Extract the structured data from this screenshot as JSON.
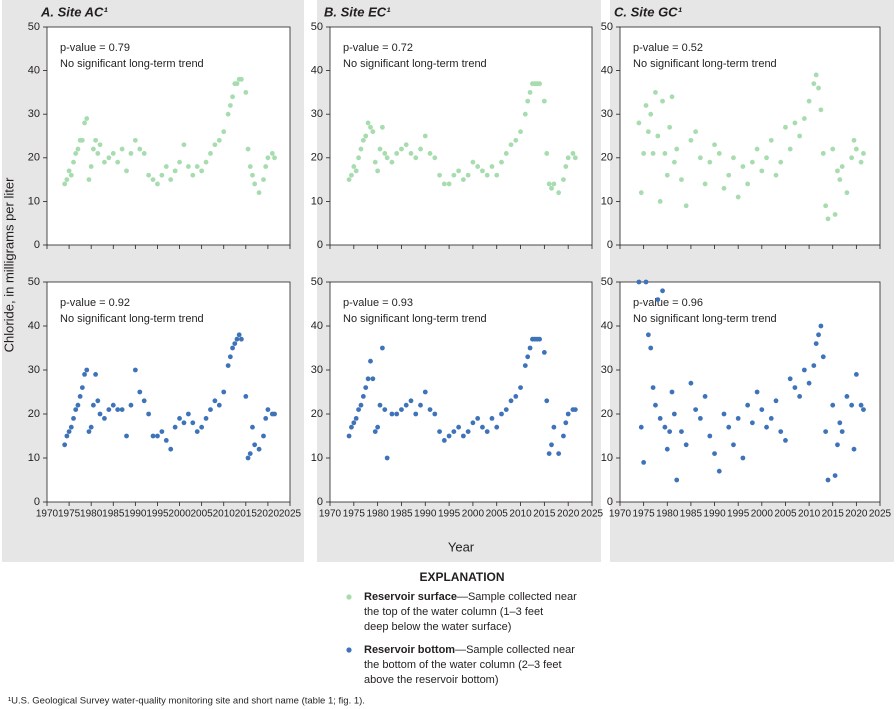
{
  "chart_data": [
    {
      "type": "scatter",
      "title": "A. Site AC¹",
      "annotations": [
        "p-value = 0.79",
        "No significant long-term trend"
      ],
      "x": [
        1974,
        1974.5,
        1975,
        1975.5,
        1976,
        1976.5,
        1977,
        1977.5,
        1978,
        1978.5,
        1979,
        1979.5,
        1980,
        1980.5,
        1981,
        1981.5,
        1982,
        1983,
        1984,
        1985,
        1986,
        1987,
        1988,
        1989,
        1990,
        1991,
        1992,
        1993,
        1994,
        1995,
        1996,
        1997,
        1998,
        1999,
        2000,
        2001,
        2002,
        2003,
        2004,
        2005,
        2006,
        2007,
        2008,
        2009,
        2010,
        2011,
        2011.5,
        2012,
        2012.5,
        2013,
        2013.5,
        2014,
        2015,
        2015.5,
        2016,
        2016.5,
        2017,
        2018,
        2019,
        2019.5,
        2020,
        2021,
        2021.5
      ],
      "series": [
        {
          "color": "#a6dcae",
          "values": [
            14,
            15,
            17,
            16,
            19,
            21,
            22,
            24,
            24,
            28,
            29,
            15,
            18,
            22,
            24,
            21,
            23,
            19,
            20,
            21,
            19,
            22,
            17,
            21,
            24,
            22,
            21,
            16,
            15,
            14,
            16,
            18,
            15,
            17,
            19,
            23,
            18,
            16,
            18,
            17,
            19,
            21,
            23,
            24,
            26,
            30,
            32,
            34,
            37,
            37,
            38,
            38,
            35,
            22,
            18,
            16,
            14,
            12,
            15,
            18,
            20,
            21,
            20
          ]
        }
      ],
      "xlim": [
        1970,
        2025
      ],
      "ylim": [
        0,
        50
      ],
      "xticks": [
        1970,
        1975,
        1980,
        1985,
        1990,
        1995,
        2000,
        2005,
        2010,
        2015,
        2020,
        2025
      ],
      "yticks": [
        0,
        10,
        20,
        30,
        40,
        50
      ]
    },
    {
      "type": "scatter",
      "annotations": [
        "p-value = 0.92",
        "No significant long-term trend"
      ],
      "x": [
        1974,
        1974.5,
        1975,
        1975.5,
        1976,
        1976.5,
        1977,
        1977.5,
        1978,
        1978.5,
        1979,
        1979.5,
        1980,
        1980.5,
        1981,
        1981.5,
        1982,
        1983,
        1984,
        1985,
        1986,
        1987,
        1988,
        1989,
        1990,
        1991,
        1992,
        1993,
        1994,
        1995,
        1996,
        1997,
        1998,
        1999,
        2000,
        2001,
        2002,
        2003,
        2004,
        2005,
        2006,
        2007,
        2008,
        2009,
        2010,
        2011,
        2011.5,
        2012,
        2012.5,
        2013,
        2013.5,
        2014,
        2015,
        2015.5,
        2016,
        2016.5,
        2017,
        2018,
        2019,
        2019.5,
        2020,
        2021,
        2021.5
      ],
      "series": [
        {
          "color": "#3f73b9",
          "values": [
            13,
            15,
            16,
            17,
            19,
            21,
            22,
            24,
            26,
            29,
            30,
            16,
            17,
            22,
            29,
            23,
            20,
            19,
            21,
            22,
            21,
            21,
            15,
            22,
            30,
            25,
            23,
            20,
            15,
            15,
            16,
            14,
            12,
            17,
            19,
            18,
            20,
            18,
            16,
            17,
            19,
            21,
            23,
            22,
            25,
            31,
            33,
            35,
            36,
            37,
            38,
            37,
            24,
            10,
            11,
            17,
            13,
            12,
            15,
            19,
            21,
            20,
            20
          ]
        }
      ],
      "xlim": [
        1970,
        2025
      ],
      "ylim": [
        0,
        50
      ],
      "xticks": [
        1970,
        1975,
        1980,
        1985,
        1990,
        1995,
        2000,
        2005,
        2010,
        2015,
        2020,
        2025
      ],
      "yticks": [
        0,
        10,
        20,
        30,
        40,
        50
      ]
    },
    {
      "type": "scatter",
      "title": "B. Site EC¹",
      "annotations": [
        "p-value = 0.72",
        "No significant long-term trend"
      ],
      "x": [
        1974,
        1974.5,
        1975,
        1975.5,
        1976,
        1976.5,
        1977,
        1977.5,
        1978,
        1978.5,
        1979,
        1979.5,
        1980,
        1980.5,
        1981,
        1981.5,
        1982,
        1983,
        1984,
        1985,
        1986,
        1987,
        1988,
        1989,
        1990,
        1991,
        1992,
        1993,
        1994,
        1995,
        1996,
        1997,
        1998,
        1999,
        2000,
        2001,
        2002,
        2003,
        2004,
        2005,
        2006,
        2007,
        2008,
        2009,
        2010,
        2011,
        2011.5,
        2012,
        2012.5,
        2013,
        2013.5,
        2014,
        2015,
        2015.5,
        2016,
        2016.5,
        2017,
        2018,
        2019,
        2019.5,
        2020,
        2021,
        2021.5
      ],
      "series": [
        {
          "color": "#a6dcae",
          "values": [
            15,
            16,
            18,
            17,
            20,
            22,
            24,
            25,
            28,
            27,
            26,
            19,
            17,
            22,
            27,
            21,
            20,
            19,
            21,
            22,
            23,
            21,
            20,
            22,
            25,
            21,
            20,
            16,
            14,
            14,
            16,
            17,
            15,
            16,
            19,
            18,
            17,
            16,
            18,
            16,
            19,
            21,
            23,
            24,
            26,
            30,
            33,
            35,
            37,
            37,
            37,
            37,
            33,
            21,
            14,
            13,
            14,
            12,
            15,
            18,
            20,
            21,
            20
          ]
        }
      ],
      "xlim": [
        1970,
        2025
      ],
      "ylim": [
        0,
        50
      ],
      "xticks": [
        1970,
        1975,
        1980,
        1985,
        1990,
        1995,
        2000,
        2005,
        2010,
        2015,
        2020,
        2025
      ],
      "yticks": [
        0,
        10,
        20,
        30,
        40,
        50
      ]
    },
    {
      "type": "scatter",
      "annotations": [
        "p-value = 0.93",
        "No significant long-term trend"
      ],
      "x": [
        1974,
        1974.5,
        1975,
        1975.5,
        1976,
        1976.5,
        1977,
        1977.5,
        1978,
        1978.5,
        1979,
        1979.5,
        1980,
        1980.5,
        1981,
        1981.5,
        1982,
        1983,
        1984,
        1985,
        1986,
        1987,
        1988,
        1989,
        1990,
        1991,
        1992,
        1993,
        1994,
        1995,
        1996,
        1997,
        1998,
        1999,
        2000,
        2001,
        2002,
        2003,
        2004,
        2005,
        2006,
        2007,
        2008,
        2009,
        2010,
        2011,
        2011.5,
        2012,
        2012.5,
        2013,
        2013.5,
        2014,
        2015,
        2015.5,
        2016,
        2016.5,
        2017,
        2018,
        2019,
        2019.5,
        2020,
        2021,
        2021.5
      ],
      "series": [
        {
          "color": "#3f73b9",
          "values": [
            15,
            17,
            18,
            19,
            21,
            22,
            24,
            26,
            28,
            32,
            28,
            16,
            17,
            22,
            35,
            21,
            10,
            20,
            20,
            21,
            22,
            23,
            20,
            22,
            25,
            21,
            20,
            16,
            14,
            15,
            16,
            17,
            15,
            16,
            18,
            19,
            17,
            16,
            19,
            17,
            20,
            21,
            23,
            24,
            26,
            31,
            33,
            35,
            37,
            37,
            37,
            37,
            34,
            23,
            11,
            13,
            17,
            11,
            15,
            18,
            20,
            21,
            21
          ]
        }
      ],
      "xlim": [
        1970,
        2025
      ],
      "ylim": [
        0,
        50
      ],
      "xticks": [
        1970,
        1975,
        1980,
        1985,
        1990,
        1995,
        2000,
        2005,
        2010,
        2015,
        2020,
        2025
      ],
      "yticks": [
        0,
        10,
        20,
        30,
        40,
        50
      ]
    },
    {
      "type": "scatter",
      "title": "C. Site GC¹",
      "annotations": [
        "p-value = 0.52",
        "No significant long-term trend"
      ],
      "x": [
        1974,
        1974.5,
        1975,
        1975.5,
        1976,
        1976.5,
        1977,
        1977.5,
        1978,
        1978.5,
        1979,
        1979.5,
        1980,
        1980.5,
        1981,
        1981.5,
        1982,
        1983,
        1984,
        1985,
        1986,
        1987,
        1988,
        1989,
        1990,
        1991,
        1992,
        1993,
        1994,
        1995,
        1996,
        1997,
        1998,
        1999,
        2000,
        2001,
        2002,
        2003,
        2004,
        2005,
        2006,
        2007,
        2008,
        2009,
        2010,
        2011,
        2011.5,
        2012,
        2012.5,
        2013,
        2013.5,
        2014,
        2015,
        2015.5,
        2016,
        2016.5,
        2017,
        2018,
        2019,
        2019.5,
        2020,
        2021,
        2021.5
      ],
      "series": [
        {
          "color": "#a6dcae",
          "values": [
            28,
            12,
            21,
            32,
            26,
            30,
            21,
            35,
            25,
            10,
            33,
            21,
            16,
            27,
            34,
            19,
            22,
            15,
            9,
            24,
            26,
            20,
            14,
            19,
            23,
            21,
            13,
            16,
            20,
            11,
            18,
            14,
            19,
            22,
            17,
            20,
            24,
            16,
            19,
            27,
            22,
            28,
            25,
            29,
            33,
            37,
            39,
            36,
            31,
            21,
            9,
            6,
            22,
            7,
            17,
            15,
            18,
            12,
            20,
            24,
            22,
            19,
            21
          ]
        }
      ],
      "xlim": [
        1970,
        2025
      ],
      "ylim": [
        0,
        50
      ],
      "xticks": [
        1970,
        1975,
        1980,
        1985,
        1990,
        1995,
        2000,
        2005,
        2010,
        2015,
        2020,
        2025
      ],
      "yticks": [
        0,
        10,
        20,
        30,
        40,
        50
      ]
    },
    {
      "type": "scatter",
      "annotations": [
        "p-value = 0.96",
        "No significant long-term trend"
      ],
      "x": [
        1974,
        1974.5,
        1975,
        1975.5,
        1976,
        1976.5,
        1977,
        1977.5,
        1978,
        1978.5,
        1979,
        1979.5,
        1980,
        1980.5,
        1981,
        1981.5,
        1982,
        1983,
        1984,
        1985,
        1986,
        1987,
        1988,
        1989,
        1990,
        1991,
        1992,
        1993,
        1994,
        1995,
        1996,
        1997,
        1998,
        1999,
        2000,
        2001,
        2002,
        2003,
        2004,
        2005,
        2006,
        2007,
        2008,
        2009,
        2010,
        2011,
        2011.5,
        2012,
        2012.5,
        2013,
        2013.5,
        2014,
        2015,
        2015.5,
        2016,
        2016.5,
        2017,
        2018,
        2019,
        2019.5,
        2020,
        2021,
        2021.5
      ],
      "series": [
        {
          "color": "#3f73b9",
          "values": [
            50,
            17,
            9,
            50,
            38,
            35,
            26,
            22,
            46,
            19,
            48,
            17,
            12,
            16,
            25,
            20,
            5,
            16,
            13,
            27,
            21,
            19,
            24,
            15,
            11,
            7,
            20,
            17,
            13,
            19,
            10,
            22,
            18,
            25,
            21,
            17,
            19,
            23,
            16,
            14,
            28,
            26,
            24,
            30,
            27,
            31,
            36,
            38,
            40,
            33,
            16,
            5,
            22,
            6,
            13,
            18,
            16,
            24,
            22,
            12,
            29,
            22,
            21
          ]
        }
      ],
      "xlim": [
        1970,
        2025
      ],
      "ylim": [
        0,
        50
      ],
      "xticks": [
        1970,
        1975,
        1980,
        1985,
        1990,
        1995,
        2000,
        2005,
        2010,
        2015,
        2020,
        2025
      ],
      "yticks": [
        0,
        10,
        20,
        30,
        40,
        50
      ]
    }
  ],
  "y_label": "Chloride, in milligrams per liter",
  "x_label": "Year",
  "explanation": {
    "title": "EXPLANATION",
    "items": [
      {
        "name": "Reservoir surface",
        "color": "#a6dcae",
        "lines": [
          "—Sample collected near",
          "the top of the water column (1–3 feet",
          "deep below the water surface)"
        ]
      },
      {
        "name": "Reservoir bottom",
        "color": "#3f73b9",
        "lines": [
          "—Sample collected near",
          "the bottom of the water column (2–3 feet",
          "above the reservoir bottom)"
        ]
      }
    ]
  },
  "footnote": "¹U.S. Geological Survey water-quality monitoring site and short name (table 1; fig. 1)."
}
